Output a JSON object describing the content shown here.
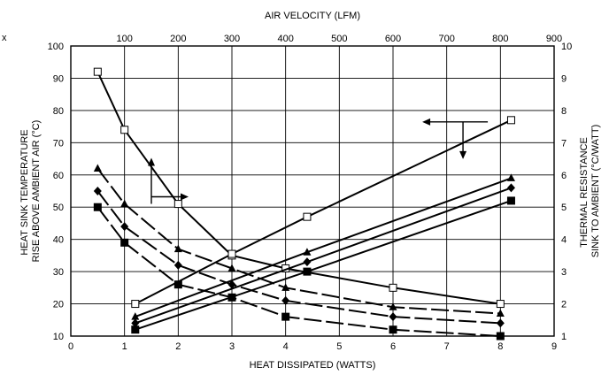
{
  "chart_data": {
    "type": "line",
    "title": "",
    "xlabel": "HEAT DISSIPATED (WATTS)",
    "x2label": "AIR VELOCITY (LFM)",
    "ylabel_lines": [
      "HEAT SINK TEMPERATURE",
      "RISE ABOVE AMBIENT AIR (°C)"
    ],
    "y2label_lines": [
      "THERMAL RESISTANCE",
      "SINK TO AMBIENT (°C/WATT)"
    ],
    "xlim": [
      0,
      9
    ],
    "x2lim": [
      0,
      900
    ],
    "ylim": [
      10,
      100
    ],
    "y2lim": [
      1,
      10
    ],
    "grid": true,
    "x_ticks": [
      "0",
      "1",
      "2",
      "3",
      "4",
      "5",
      "6",
      "7",
      "8",
      "9"
    ],
    "x2_ticks": [
      "100",
      "200",
      "300",
      "400",
      "500",
      "600",
      "700",
      "800",
      "900"
    ],
    "y_ticks": [
      "10",
      "20",
      "30",
      "40",
      "50",
      "60",
      "70",
      "80",
      "90",
      "100"
    ],
    "y2_ticks": [
      "1",
      "2",
      "3",
      "4",
      "5",
      "6",
      "7",
      "8",
      "9",
      "10"
    ],
    "stray_mark": "x",
    "colors": {
      "ink": "#000000",
      "background": "#ffffff"
    },
    "series": [
      {
        "axis": "thermal-resistance-vs-air-velocity",
        "marker": "open-square",
        "dash": "solid",
        "points": [
          [
            50,
            9.2
          ],
          [
            100,
            7.4
          ],
          [
            200,
            5.1
          ],
          [
            300,
            3.5
          ],
          [
            400,
            3.1
          ],
          [
            600,
            2.5
          ],
          [
            800,
            2.0
          ]
        ]
      },
      {
        "axis": "thermal-resistance-vs-air-velocity",
        "marker": "filled-triangle",
        "dash": "long-dash",
        "points": [
          [
            50,
            6.2
          ],
          [
            100,
            5.1
          ],
          [
            200,
            3.7
          ],
          [
            300,
            3.1
          ],
          [
            400,
            2.5
          ],
          [
            600,
            1.9
          ],
          [
            800,
            1.7
          ]
        ]
      },
      {
        "axis": "thermal-resistance-vs-air-velocity",
        "marker": "filled-diamond",
        "dash": "long-dash",
        "points": [
          [
            50,
            5.5
          ],
          [
            100,
            4.4
          ],
          [
            200,
            3.2
          ],
          [
            300,
            2.6
          ],
          [
            400,
            2.1
          ],
          [
            600,
            1.6
          ],
          [
            800,
            1.4
          ]
        ]
      },
      {
        "axis": "thermal-resistance-vs-air-velocity",
        "marker": "filled-square",
        "dash": "long-dash",
        "points": [
          [
            50,
            5.0
          ],
          [
            100,
            3.9
          ],
          [
            200,
            2.6
          ],
          [
            300,
            2.2
          ],
          [
            400,
            1.6
          ],
          [
            600,
            1.2
          ],
          [
            800,
            1.0
          ]
        ]
      },
      {
        "axis": "temperature-rise-vs-heat-dissipated",
        "marker": "open-square",
        "dash": "solid",
        "points": [
          [
            1.2,
            20
          ],
          [
            3,
            35.5
          ],
          [
            4.4,
            47
          ],
          [
            8.2,
            77
          ]
        ]
      },
      {
        "axis": "temperature-rise-vs-heat-dissipated",
        "marker": "filled-triangle",
        "dash": "solid",
        "points": [
          [
            1.2,
            16
          ],
          [
            4.4,
            36
          ],
          [
            8.2,
            59
          ]
        ]
      },
      {
        "axis": "temperature-rise-vs-heat-dissipated",
        "marker": "filled-diamond",
        "dash": "solid",
        "points": [
          [
            1.2,
            14
          ],
          [
            4.4,
            33
          ],
          [
            8.2,
            56
          ]
        ]
      },
      {
        "axis": "temperature-rise-vs-heat-dissipated",
        "marker": "filled-square",
        "dash": "solid",
        "points": [
          [
            1.2,
            12
          ],
          [
            4.4,
            30
          ],
          [
            8.2,
            52
          ]
        ]
      }
    ],
    "annotations": [
      {
        "kind": "axis-arrow",
        "anchor": [
          1.5,
          62
        ],
        "direction": "up-then-right"
      },
      {
        "kind": "axis-arrow",
        "anchor": [
          7.6,
          77
        ],
        "direction": "left-then-down"
      }
    ]
  }
}
